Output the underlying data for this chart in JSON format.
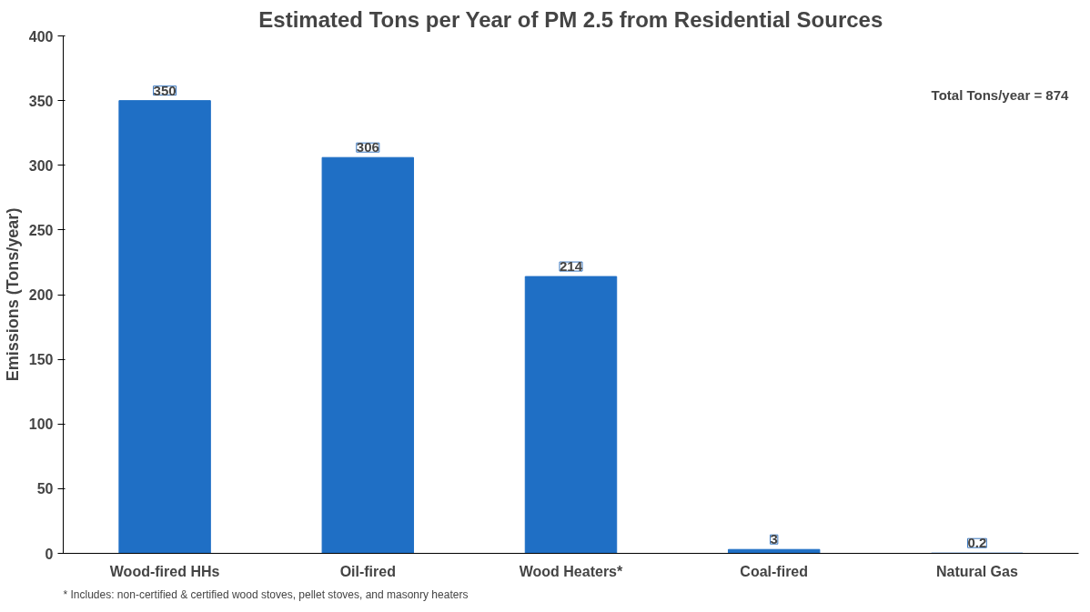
{
  "chart_data": {
    "type": "bar",
    "title": "Estimated Tons per Year of PM 2.5 from Residential Sources",
    "ylabel": "Emissions (Tons/year)",
    "categories": [
      "Wood-fired HHs",
      "Oil-fired",
      "Wood Heaters*",
      "Coal-fired",
      "Natural Gas"
    ],
    "values": [
      350,
      306,
      214,
      3,
      0.2
    ],
    "color": "#1f6fc5",
    "ylim": [
      0,
      400
    ],
    "yticks": [
      0,
      50,
      100,
      150,
      200,
      250,
      300,
      350,
      400
    ],
    "grid": false,
    "data_labels": true,
    "annotations": [
      "Total Tons/year = 874",
      "* Includes: non-certified & certified wood stoves, pellet stoves, and masonry heaters"
    ]
  }
}
